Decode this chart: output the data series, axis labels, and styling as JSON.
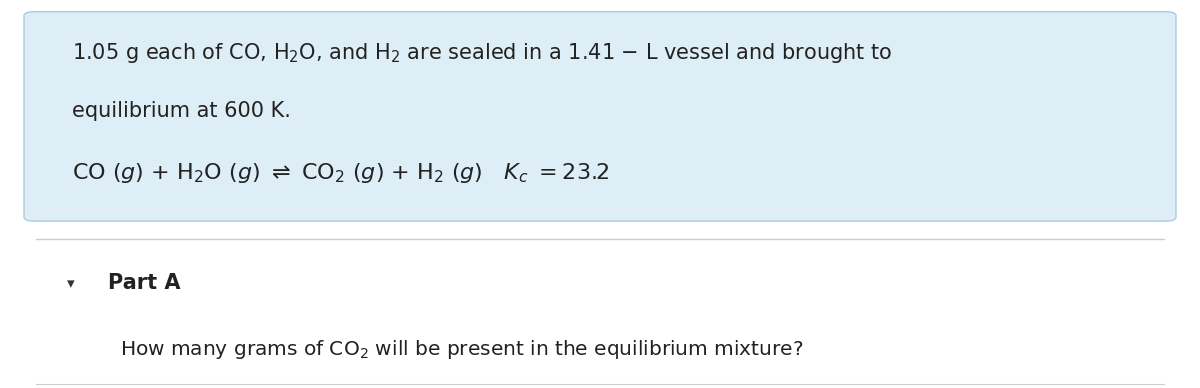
{
  "bg_color": "#ffffff",
  "top_box_color": "#ddeef6",
  "top_box_border": "#aaccdd",
  "divider_color": "#cccccc",
  "bottom_bg": "#ffffff",
  "font_size_main": 15,
  "font_size_equation": 16,
  "font_size_question": 14.5,
  "font_size_part": 15
}
